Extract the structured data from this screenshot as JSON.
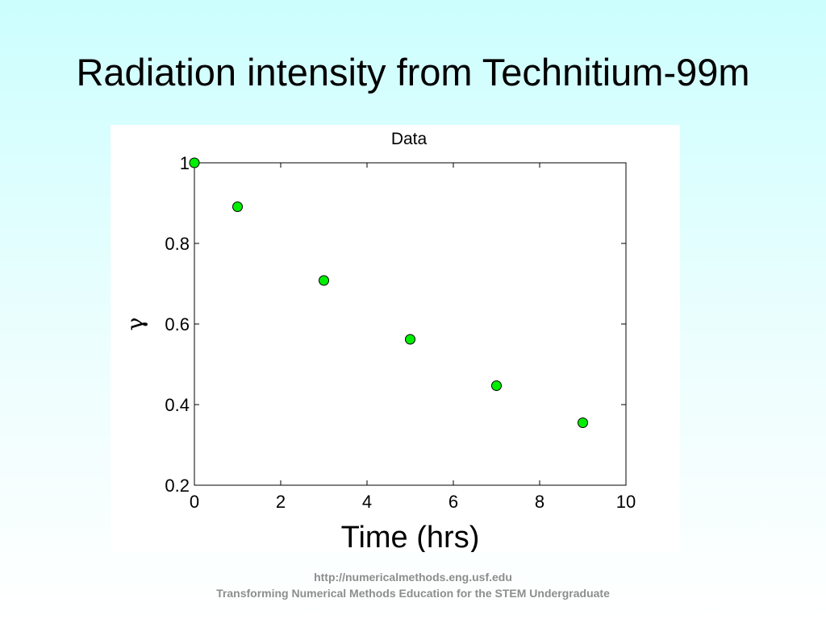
{
  "slide": {
    "title": "Radiation intensity from Technitium-99m"
  },
  "footer": {
    "url": "http://numericalmethods.eng.usf.edu",
    "tagline": "Transforming Numerical Methods Education for the STEM Undergraduate"
  },
  "chart_data": {
    "type": "scatter",
    "title": "Data",
    "xlabel": "Time (hrs)",
    "ylabel": "γ",
    "xlim": [
      0,
      10
    ],
    "ylim": [
      0.2,
      1
    ],
    "xticks": [
      0,
      2,
      4,
      6,
      8,
      10
    ],
    "yticks": [
      0.2,
      0.4,
      0.6,
      0.8,
      1
    ],
    "ytick_labels": [
      "0.2",
      "0.4",
      "0.6",
      "0.8",
      "1"
    ],
    "grid": false,
    "marker_color": "#00ee00",
    "marker_edge_color": "#000000",
    "points": [
      {
        "x": 0,
        "y": 1
      },
      {
        "x": 1,
        "y": 0.891
      },
      {
        "x": 3,
        "y": 0.708
      },
      {
        "x": 5,
        "y": 0.562
      },
      {
        "x": 7,
        "y": 0.447
      },
      {
        "x": 9,
        "y": 0.355
      }
    ]
  }
}
